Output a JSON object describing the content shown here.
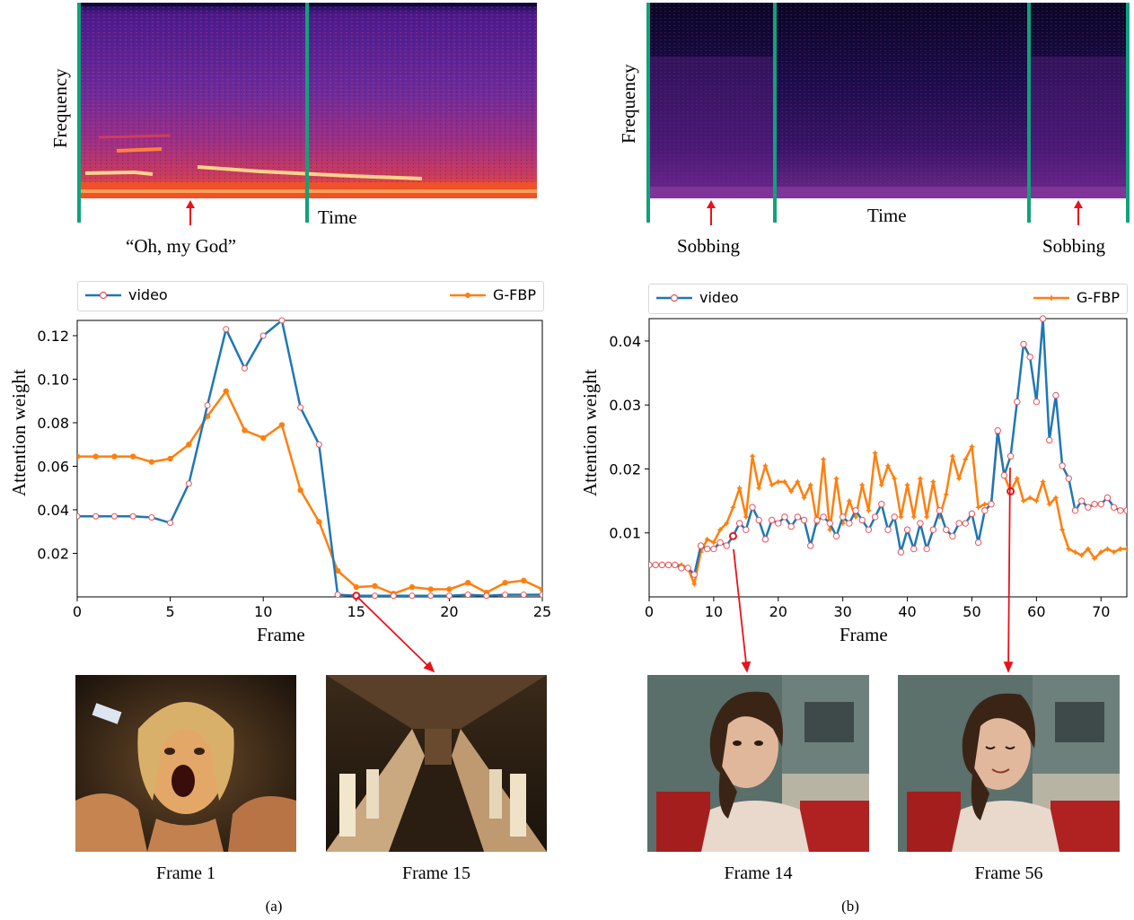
{
  "panel_a": {
    "spectrogram": {
      "ylabel": "Frequency",
      "xlabel": "Time",
      "annotation": "“Oh, my God”"
    },
    "chart": {
      "legend": [
        "video",
        "G-FBP"
      ],
      "ylabel": "Attention weight",
      "xlabel": "Frame"
    },
    "frames": [
      "Frame 1",
      "Frame 15"
    ],
    "label": "(a)"
  },
  "panel_b": {
    "spectrogram": {
      "ylabel": "Frequency",
      "xlabel": "Time",
      "annotation_left": "Sobbing",
      "annotation_right": "Sobbing"
    },
    "chart": {
      "legend": [
        "video",
        "G-FBP"
      ],
      "ylabel": "Attention weight",
      "xlabel": "Frame"
    },
    "frames": [
      "Frame 14",
      "Frame 56"
    ],
    "label": "(b)"
  },
  "colors": {
    "video": "#1f77b4",
    "gfbp": "#ff7f0e",
    "marker_video": "#e8545c",
    "divider": "#0fa37a",
    "arrow": "#e8131b"
  },
  "chart_data": [
    {
      "type": "line",
      "xlabel": "Frame",
      "ylabel": "Attention weight",
      "xlim": [
        0,
        25
      ],
      "ylim": [
        0.0,
        0.127
      ],
      "xticks": [
        0,
        5,
        10,
        15,
        20,
        25
      ],
      "yticks": [
        0.02,
        0.04,
        0.06,
        0.08,
        0.1,
        0.12
      ],
      "ytick_labels": [
        "0.02",
        "0.04",
        "0.06",
        "0.08",
        "0.10",
        "0.12"
      ],
      "legend_position": "top",
      "series": [
        {
          "name": "video",
          "x": [
            0,
            1,
            2,
            3,
            4,
            5,
            6,
            7,
            8,
            9,
            10,
            11,
            12,
            13,
            14,
            15,
            16,
            17,
            18,
            19,
            20,
            21,
            22,
            23,
            24,
            25
          ],
          "values": [
            0.037,
            0.037,
            0.037,
            0.037,
            0.0365,
            0.034,
            0.052,
            0.088,
            0.123,
            0.105,
            0.12,
            0.127,
            0.087,
            0.07,
            0.001,
            0.0005,
            0.0005,
            0.0005,
            0.0005,
            0.0005,
            0.0005,
            0.001,
            0.0005,
            0.001,
            0.001,
            0.001
          ]
        },
        {
          "name": "G-FBP",
          "x": [
            0,
            1,
            2,
            3,
            4,
            5,
            6,
            7,
            8,
            9,
            10,
            11,
            12,
            13,
            14,
            15,
            16,
            17,
            18,
            19,
            20,
            21,
            22,
            23,
            24,
            25
          ],
          "values": [
            0.0645,
            0.0645,
            0.0645,
            0.0645,
            0.062,
            0.0635,
            0.07,
            0.083,
            0.0945,
            0.0765,
            0.073,
            0.079,
            0.049,
            0.0345,
            0.012,
            0.0045,
            0.005,
            0.0015,
            0.0045,
            0.0035,
            0.0035,
            0.0065,
            0.002,
            0.0065,
            0.0075,
            0.0035
          ]
        }
      ]
    },
    {
      "type": "line",
      "xlabel": "Frame",
      "ylabel": "Attention weight",
      "xlim": [
        0,
        74
      ],
      "ylim": [
        0.0,
        0.0435
      ],
      "xticks": [
        0,
        10,
        20,
        30,
        40,
        50,
        60,
        70
      ],
      "yticks": [
        0.01,
        0.02,
        0.03,
        0.04
      ],
      "ytick_labels": [
        "0.01",
        "0.02",
        "0.03",
        "0.04"
      ],
      "legend_position": "top",
      "series": [
        {
          "name": "video",
          "values": [
            0.005,
            0.005,
            0.005,
            0.005,
            0.005,
            0.0045,
            0.0045,
            0.0035,
            0.008,
            0.0075,
            0.0075,
            0.0085,
            0.008,
            0.0095,
            0.0115,
            0.0105,
            0.014,
            0.012,
            0.009,
            0.012,
            0.0115,
            0.0125,
            0.011,
            0.0125,
            0.012,
            0.008,
            0.012,
            0.0125,
            0.0115,
            0.0095,
            0.0125,
            0.0115,
            0.0135,
            0.012,
            0.0105,
            0.0125,
            0.0145,
            0.0105,
            0.0125,
            0.007,
            0.0105,
            0.0075,
            0.0115,
            0.0075,
            0.0105,
            0.0135,
            0.0105,
            0.0095,
            0.0115,
            0.0115,
            0.013,
            0.0085,
            0.0135,
            0.0145,
            0.026,
            0.019,
            0.022,
            0.0305,
            0.0395,
            0.0375,
            0.0305,
            0.0435,
            0.0245,
            0.0315,
            0.0205,
            0.0185,
            0.0135,
            0.015,
            0.014,
            0.0145,
            0.0145,
            0.0155,
            0.014,
            0.0135,
            0.0135
          ]
        },
        {
          "name": "G-FBP",
          "values": [
            0.005,
            0.005,
            0.005,
            0.005,
            0.005,
            0.005,
            0.0045,
            0.002,
            0.007,
            0.009,
            0.0085,
            0.0105,
            0.0115,
            0.014,
            0.017,
            0.0125,
            0.022,
            0.017,
            0.0205,
            0.0175,
            0.018,
            0.018,
            0.0165,
            0.018,
            0.0155,
            0.0175,
            0.0115,
            0.0215,
            0.0105,
            0.0185,
            0.0115,
            0.015,
            0.0125,
            0.0175,
            0.0135,
            0.0225,
            0.0175,
            0.0205,
            0.0185,
            0.0125,
            0.0175,
            0.0125,
            0.0185,
            0.0125,
            0.018,
            0.0125,
            0.016,
            0.022,
            0.0185,
            0.0215,
            0.0235,
            0.014,
            0.0145,
            0.0145,
            0.0255,
            0.019,
            0.0165,
            0.0185,
            0.015,
            0.0155,
            0.015,
            0.018,
            0.0145,
            0.0155,
            0.0105,
            0.0075,
            0.007,
            0.0065,
            0.0075,
            0.006,
            0.007,
            0.0075,
            0.007,
            0.0075,
            0.0075
          ]
        }
      ]
    }
  ]
}
